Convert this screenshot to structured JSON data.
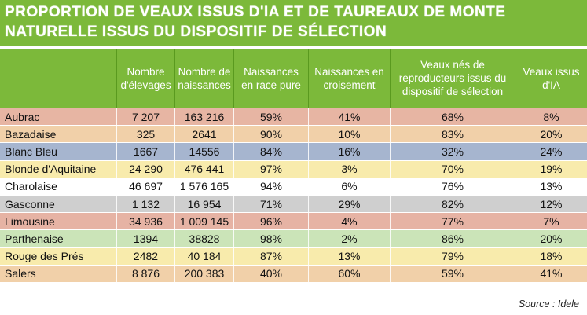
{
  "title": {
    "line1": "PROPORTION DE VEAUX ISSUS D'IA ET DE TAUREAUX DE MONTE",
    "line2": "NATURELLE ISSUS DU DISPOSITIF DE SÉLECTION"
  },
  "colors": {
    "header_bg": "#7cb93a",
    "row_colors": [
      "#e7b5a3",
      "#f1d0a9",
      "#a6b5cf",
      "#f8ebac",
      "#ffffff",
      "#cfcfcf",
      "#e6b3a4",
      "#cbe4b8",
      "#f8ebac",
      "#f1d0a9"
    ]
  },
  "table": {
    "headers": [
      "",
      "Nombre d'élevages",
      "Nombre de naissances",
      "Naissances en race pure",
      "Naissances en croisement",
      "Veaux nés de reproducteurs issus du dispositif de sélection",
      "Veaux issus d'IA"
    ],
    "rows": [
      [
        "Aubrac",
        "7 207",
        "163 216",
        "59%",
        "41%",
        "68%",
        "8%"
      ],
      [
        "Bazadaise",
        "325",
        "2641",
        "90%",
        "10%",
        "83%",
        "20%"
      ],
      [
        "Blanc Bleu",
        "1667",
        "14556",
        "84%",
        "16%",
        "32%",
        "24%"
      ],
      [
        "Blonde d'Aquitaine",
        "24 290",
        "476 441",
        "97%",
        "3%",
        "70%",
        "19%"
      ],
      [
        "Charolaise",
        "46 697",
        "1 576 165",
        "94%",
        "6%",
        "76%",
        "13%"
      ],
      [
        "Gasconne",
        "1 132",
        "16 954",
        "71%",
        "29%",
        "82%",
        "12%"
      ],
      [
        "Limousine",
        "34 936",
        "1 009 145",
        "96%",
        "4%",
        "77%",
        "7%"
      ],
      [
        "Parthenaise",
        "1394",
        "38828",
        "98%",
        "2%",
        "86%",
        "20%"
      ],
      [
        "Rouge des Prés",
        "2482",
        "40 184",
        "87%",
        "13%",
        "79%",
        "18%"
      ],
      [
        "Salers",
        "8 876",
        "200 383",
        "40%",
        "60%",
        "59%",
        "41%"
      ]
    ]
  },
  "source": "Source : Idele"
}
